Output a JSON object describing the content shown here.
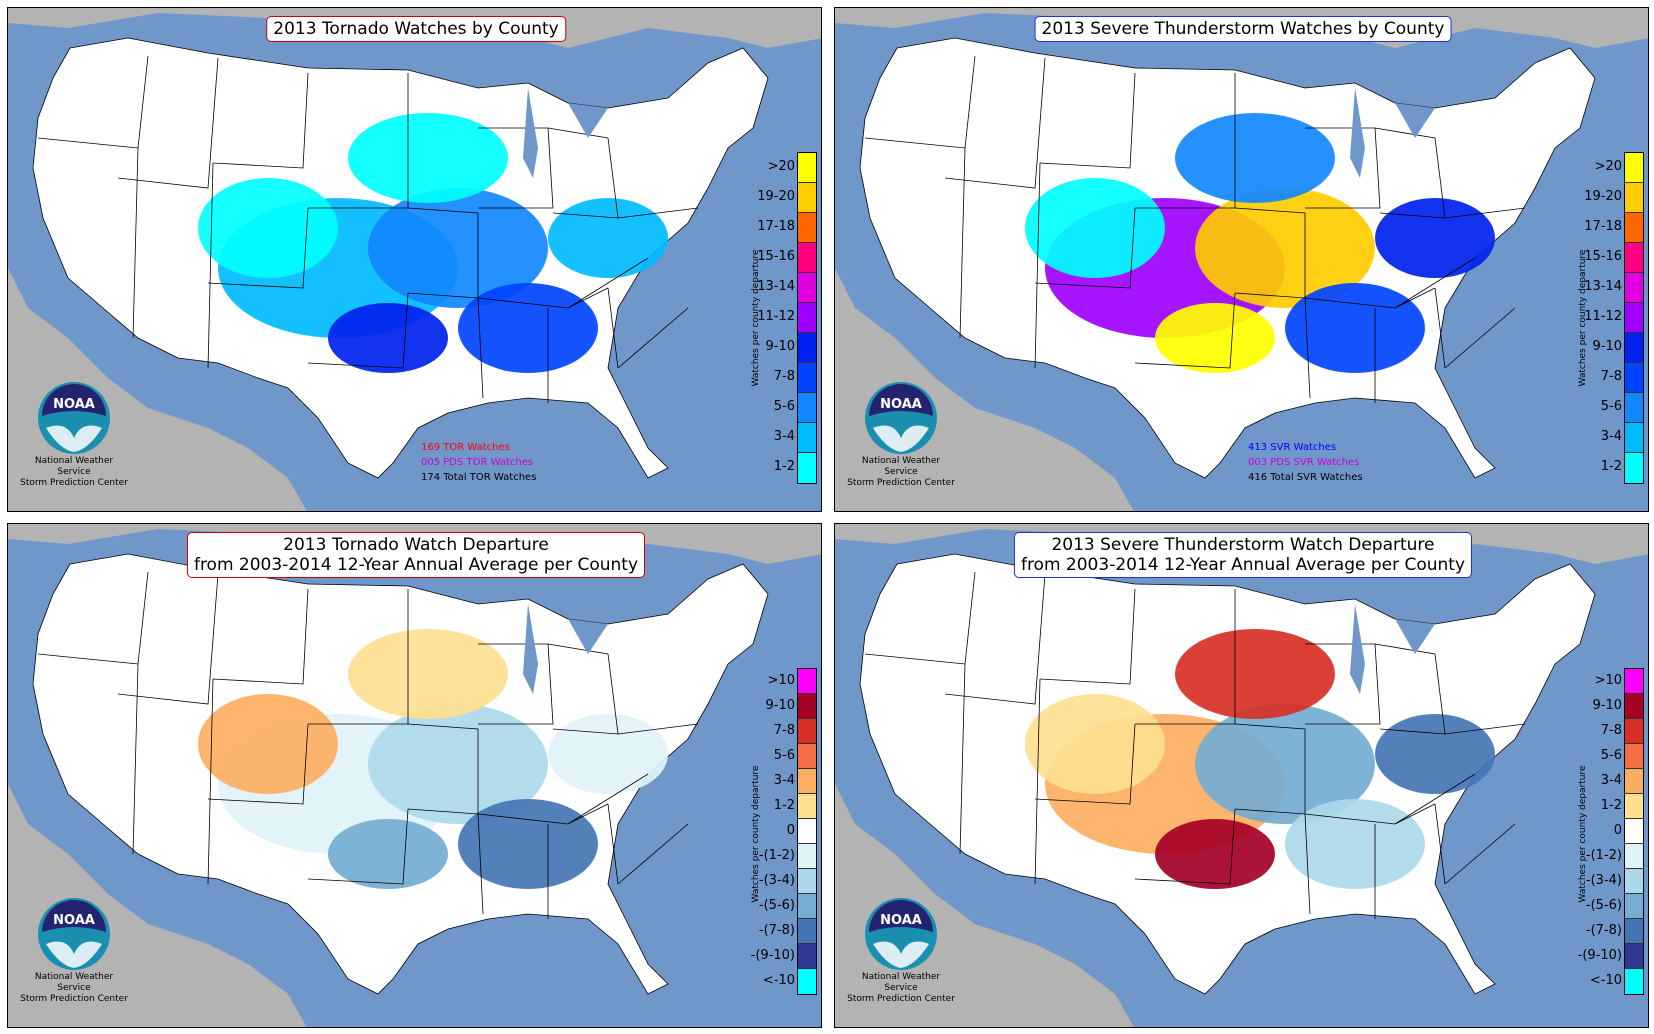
{
  "credits": {
    "line1": "National Weather Service",
    "line2": "Storm Prediction Center",
    "logo_text": "NOAA"
  },
  "colorbar_axis_label": "Watches per county departure",
  "scales": {
    "watches": {
      "labels": [
        ">20",
        "19-20",
        "17-18",
        "15-16",
        "13-14",
        "11-12",
        "9-10",
        "7-8",
        "5-6",
        "3-4",
        "1-2"
      ],
      "colors": [
        "#ffff00",
        "#ffcc00",
        "#ff6600",
        "#ff0080",
        "#e000e0",
        "#a000ff",
        "#0022ee",
        "#0044ff",
        "#1188ff",
        "#00bbff",
        "#00ffff"
      ]
    },
    "departure": {
      "labels": [
        ">10",
        "9-10",
        "7-8",
        "5-6",
        "3-4",
        "1-2",
        "0",
        "-(1-2)",
        "-(3-4)",
        "-(5-6)",
        "-(7-8)",
        "-(9-10)",
        "<-10"
      ],
      "colors": [
        "#ff00ff",
        "#a50026",
        "#d73027",
        "#f46d43",
        "#fdae61",
        "#fee090",
        "#ffffff",
        "#e0f3f8",
        "#abd9e9",
        "#74add1",
        "#4575b4",
        "#313695",
        "#00ffff"
      ]
    }
  },
  "panels": [
    {
      "title_lines": [
        "2013 Tornado Watches by County"
      ],
      "stats": [
        {
          "text": "169 TOR Watches",
          "color": "#ff0000"
        },
        {
          "text": "005 PDS TOR Watches",
          "color": "#cc00cc"
        },
        {
          "text": "174 Total TOR Watches",
          "color": "#000000"
        }
      ]
    },
    {
      "title_lines": [
        "2013 Severe Thunderstorm Watches by County"
      ],
      "stats": [
        {
          "text": "413 SVR Watches",
          "color": "#0000ff"
        },
        {
          "text": "003 PDS SVR Watches",
          "color": "#cc00cc"
        },
        {
          "text": "416 Total SVR Watches",
          "color": "#000000"
        }
      ]
    },
    {
      "title_lines": [
        "2013 Tornado Watch Departure",
        "from 2003-2014 12-Year Annual Average per County"
      ]
    },
    {
      "title_lines": [
        "2013 Severe Thunderstorm Watch Departure",
        "from 2003-2014 12-Year Annual Average per County"
      ]
    }
  ],
  "colors": {
    "ocean": "#6f97c9",
    "land_outside": "#b3b3b3",
    "land_us": "#ffffff",
    "tor_border": "#cc0000",
    "svr_border": "#2233cc"
  }
}
